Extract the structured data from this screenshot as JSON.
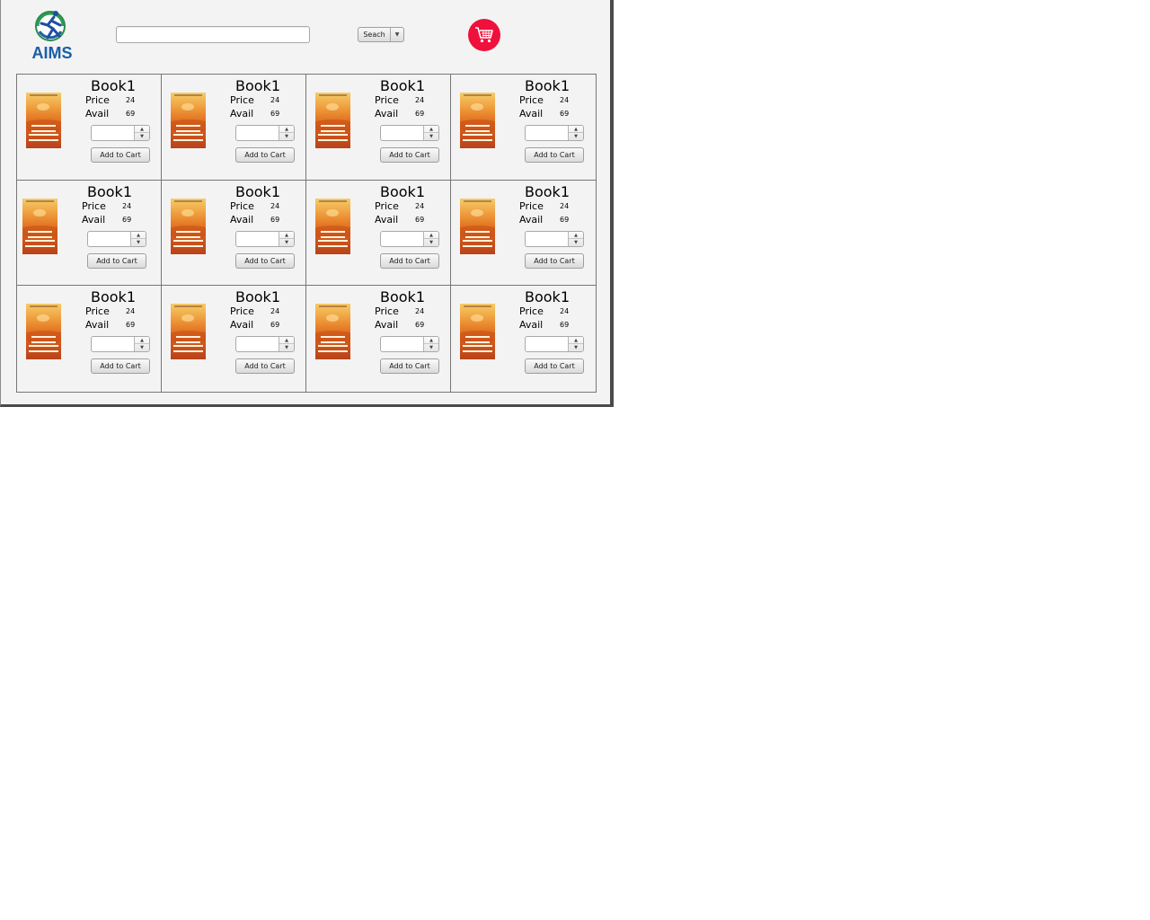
{
  "header": {
    "logo_text": "AIMS",
    "search": {
      "value": "",
      "placeholder": ""
    },
    "search_button_label": "Seach",
    "cart_icon": "shopping-cart-icon",
    "cart_color": "#f0103c"
  },
  "books": [
    {
      "title": "Book1",
      "price_label": "Price",
      "price": "24",
      "avail_label": "Avail",
      "avail": "69",
      "quantity": "",
      "add_label": "Add to Cart"
    },
    {
      "title": "Book1",
      "price_label": "Price",
      "price": "24",
      "avail_label": "Avail",
      "avail": "69",
      "quantity": "",
      "add_label": "Add to Cart"
    },
    {
      "title": "Book1",
      "price_label": "Price",
      "price": "24",
      "avail_label": "Avail",
      "avail": "69",
      "quantity": "",
      "add_label": "Add to Cart"
    },
    {
      "title": "Book1",
      "price_label": "Price",
      "price": "24",
      "avail_label": "Avail",
      "avail": "69",
      "quantity": "",
      "add_label": "Add to Cart"
    },
    {
      "title": "Book1",
      "price_label": "Price",
      "price": "24",
      "avail_label": "Avail",
      "avail": "69",
      "quantity": "",
      "add_label": "Add to Cart"
    },
    {
      "title": "Book1",
      "price_label": "Price",
      "price": "24",
      "avail_label": "Avail",
      "avail": "69",
      "quantity": "",
      "add_label": "Add to Cart"
    },
    {
      "title": "Book1",
      "price_label": "Price",
      "price": "24",
      "avail_label": "Avail",
      "avail": "69",
      "quantity": "",
      "add_label": "Add to Cart"
    },
    {
      "title": "Book1",
      "price_label": "Price",
      "price": "24",
      "avail_label": "Avail",
      "avail": "69",
      "quantity": "",
      "add_label": "Add to Cart"
    },
    {
      "title": "Book1",
      "price_label": "Price",
      "price": "24",
      "avail_label": "Avail",
      "avail": "69",
      "quantity": "",
      "add_label": "Add to Cart"
    },
    {
      "title": "Book1",
      "price_label": "Price",
      "price": "24",
      "avail_label": "Avail",
      "avail": "69",
      "quantity": "",
      "add_label": "Add to Cart"
    },
    {
      "title": "Book1",
      "price_label": "Price",
      "price": "24",
      "avail_label": "Avail",
      "avail": "69",
      "quantity": "",
      "add_label": "Add to Cart"
    },
    {
      "title": "Book1",
      "price_label": "Price",
      "price": "24",
      "avail_label": "Avail",
      "avail": "69",
      "quantity": "",
      "add_label": "Add to Cart"
    }
  ]
}
